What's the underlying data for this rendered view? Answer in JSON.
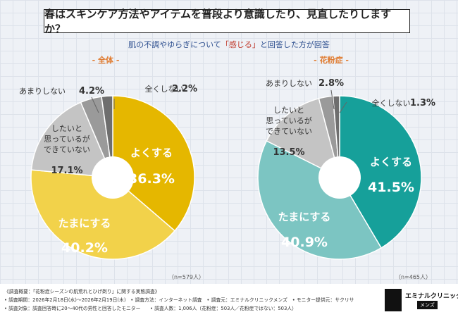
{
  "header": {
    "title": "春はスキンケア方法やアイテムを普段より意識したり、見直したりしますか？",
    "subtitle_pre": "肌の不調やゆらぎについて",
    "subtitle_quote": "「感じる」",
    "subtitle_post": "と回答した方が回答"
  },
  "chart_data": [
    {
      "type": "pie",
      "title": "全体",
      "n_label": "（n=579人）",
      "slices": [
        {
          "label": "よくする",
          "value": 36.3,
          "value_label": "36.3%",
          "color": "#e5b700"
        },
        {
          "label": "たまにする",
          "value": 40.2,
          "value_label": "40.2%",
          "color": "#f2d24a"
        },
        {
          "label": "したいと思っているができていない",
          "label_lines": [
            "したいと",
            "思っているが",
            "できていない"
          ],
          "value": 17.1,
          "value_label": "17.1%",
          "color": "#c4c4c4"
        },
        {
          "label": "あまりしない",
          "value": 4.2,
          "value_label": "4.2%",
          "color": "#9a9a9a"
        },
        {
          "label": "全くしない",
          "value": 2.2,
          "value_label": "2.2%",
          "color": "#6e6e6e"
        }
      ]
    },
    {
      "type": "pie",
      "title": "花粉症",
      "n_label": "（n=465人）",
      "slices": [
        {
          "label": "よくする",
          "value": 41.5,
          "value_label": "41.5%",
          "color": "#16a09a"
        },
        {
          "label": "たまにする",
          "value": 40.9,
          "value_label": "40.9%",
          "color": "#7cc5c2"
        },
        {
          "label": "したいと思っているができていない",
          "label_lines": [
            "したいと",
            "思っているが",
            "できていない"
          ],
          "value": 13.5,
          "value_label": "13.5%",
          "color": "#c4c4c4"
        },
        {
          "label": "あまりしない",
          "value": 2.8,
          "value_label": "2.8%",
          "color": "#9a9a9a"
        },
        {
          "label": "全くしない",
          "value": 1.3,
          "value_label": "1.3%",
          "color": "#6e6e6e"
        }
      ]
    }
  ],
  "footer": {
    "lines": [
      "《調査概要：「花粉症シーズンの肌荒れとひげ剃り」に関する実態調査》",
      "• 調査期間：2026年2月18日(水)〜2026年2月19日(木)　• 調査方法：インターネット調査　• 調査元：エミナルクリニックメンズ　• モニター提供元：サクリサ",
      "• 調査対象：調査回答時に20〜40代の男性と回答したモニター　　• 調査人数：1,006人（花粉症：503人／花粉症ではない：503人）"
    ]
  },
  "logo": {
    "name": "エミナルクリニック",
    "sub": "メンズ"
  }
}
